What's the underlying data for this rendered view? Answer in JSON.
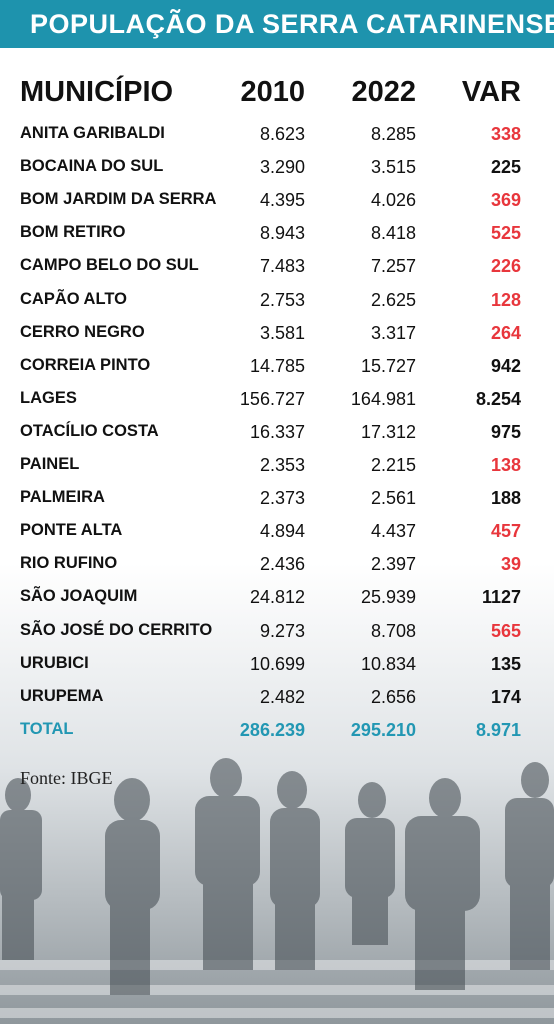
{
  "header": {
    "title": "POPULAÇÃO DA SERRA CATARINENSE"
  },
  "table": {
    "columns": [
      "MUNICÍPIO",
      "2010",
      "2022",
      "VAR"
    ],
    "rows": [
      [
        "ANITA GARIBALDI",
        "8.623",
        "8.285",
        "338"
      ],
      [
        "BOCAINA DO SUL",
        "3.290",
        "3.515",
        "225"
      ],
      [
        "BOM JARDIM DA SERRA",
        "4.395",
        "4.026",
        "369"
      ],
      [
        "BOM RETIRO",
        "8.943",
        "8.418",
        "525"
      ],
      [
        "CAMPO BELO DO SUL",
        "7.483",
        "7.257",
        "226"
      ],
      [
        "CAPÃO ALTO",
        "2.753",
        "2.625",
        "128"
      ],
      [
        "CERRO NEGRO",
        "3.581",
        "3.317",
        "264"
      ],
      [
        "CORREIA PINTO",
        "14.785",
        "15.727",
        "942"
      ],
      [
        "LAGES",
        "156.727",
        "164.981",
        "8.254"
      ],
      [
        "OTACÍLIO COSTA",
        "16.337",
        "17.312",
        "975"
      ],
      [
        "PAINEL",
        "2.353",
        "2.215",
        "138"
      ],
      [
        "PALMEIRA",
        "2.373",
        "2.561",
        "188"
      ],
      [
        "PONTE ALTA",
        "4.894",
        "4.437",
        "457"
      ],
      [
        "RIO RUFINO",
        "2.436",
        "2.397",
        "39"
      ],
      [
        "SÃO JOAQUIM",
        "24.812",
        "25.939",
        "1127"
      ],
      [
        "SÃO JOSÉ DO CERRITO",
        "9.273",
        "8.708",
        "565"
      ],
      [
        "URUBICI",
        "10.699",
        "10.834",
        "135"
      ],
      [
        "URUPEMA",
        "2.482",
        "2.656",
        "174"
      ]
    ],
    "var_colors": [
      "#e8363c",
      "#111111",
      "#e8363c",
      "#e8363c",
      "#e8363c",
      "#e8363c",
      "#e8363c",
      "#111111",
      "#111111",
      "#111111",
      "#e8363c",
      "#111111",
      "#e8363c",
      "#e8363c",
      "#111111",
      "#e8363c",
      "#111111",
      "#111111"
    ],
    "total": [
      "TOTAL",
      "286.239",
      "295.210",
      "8.971"
    ]
  },
  "source": "Fonte: IBGE"
}
